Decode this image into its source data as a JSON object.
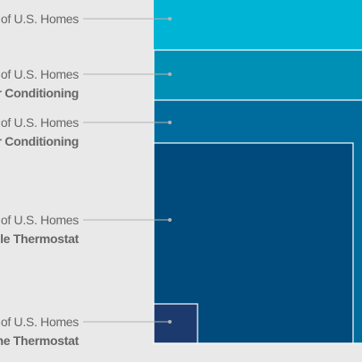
{
  "chart_data": {
    "type": "nested-area",
    "title": "",
    "items": [
      {
        "line1": "% of U.S. Homes",
        "line2": "",
        "color": "#00b4d5"
      },
      {
        "line1": "% of U.S. Homes",
        "line2": "Air Conditioning",
        "color": "#0090b5"
      },
      {
        "line1": "% of U.S. Homes",
        "line2": "Air Conditioning",
        "color": "#006c9e"
      },
      {
        "line1": "% of U.S. Homes",
        "line2": "Programmable Thermostat",
        "color": "#004a7c"
      },
      {
        "line1": "% of U.S. Homes",
        "line2": "Use the Thermostat",
        "color": "#1c3a6e"
      }
    ],
    "leader_color": "#b4b4b4",
    "border_color": "#ffffff"
  }
}
